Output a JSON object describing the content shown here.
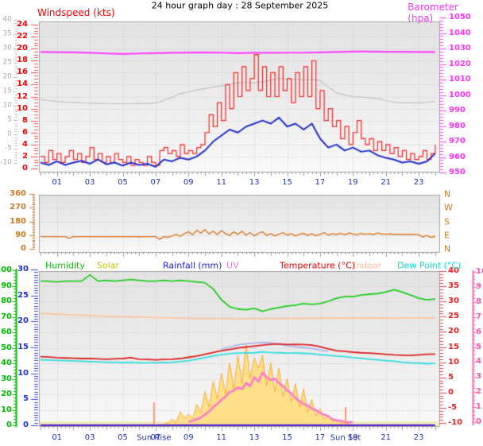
{
  "header": {
    "title": "24 hour graph day : 28 September 2025"
  },
  "hour_tick_labels": [
    "01",
    "03",
    "05",
    "07",
    "09",
    "11",
    "13",
    "15",
    "17",
    "19",
    "21",
    "23"
  ],
  "hour_tick_hours": [
    1,
    3,
    5,
    7,
    9,
    11,
    13,
    15,
    17,
    19,
    21,
    23
  ],
  "chart_data": [
    {
      "id": "wind-and-barometer",
      "type": "line",
      "x_axis": {
        "range_hours": [
          0,
          24
        ]
      },
      "axes": {
        "outer": {
          "label": "",
          "ticks": [
            40,
            35,
            30,
            25,
            20,
            15,
            10,
            5,
            0,
            -5,
            -10
          ],
          "range": [
            -10,
            40
          ],
          "color": "#a8a8a8"
        },
        "windspeed": {
          "label": "Windspeed (kts)",
          "ticks": [
            24,
            22,
            20,
            18,
            16,
            14,
            12,
            10,
            8,
            6,
            4,
            2,
            0
          ],
          "range": [
            0,
            24
          ],
          "color": "#ff0000"
        },
        "barometer": {
          "label": "Barometer (hpa)",
          "ticks": [
            1050,
            1040,
            1030,
            1020,
            1010,
            1000,
            990,
            980,
            970,
            960,
            950
          ],
          "range": [
            950,
            1050
          ],
          "color": "#ff33ff"
        }
      },
      "series": [
        {
          "name": "gray-trend",
          "axis": "outer",
          "color": "#c2c2c2",
          "style": "line",
          "x_start": 0,
          "x_step": 0.5,
          "y": [
            12.2,
            11.8,
            11.5,
            11.3,
            11.2,
            11.0,
            10.9,
            10.8,
            10.8,
            10.7,
            10.7,
            10.8,
            10.8,
            10.8,
            11.0,
            11.8,
            13.0,
            14.2,
            14.8,
            15.5,
            16.0,
            16.5,
            17.0,
            17.5,
            18.0,
            18.2,
            18.0,
            18.3,
            19.0,
            19.5,
            19.2,
            19.3,
            19.0,
            19.2,
            18.8,
            16.5,
            14.5,
            13.8,
            13.2,
            13.0,
            12.8,
            12.5,
            11.8,
            11.2,
            11.0,
            11.0,
            11.0,
            11.2,
            11.5
          ]
        },
        {
          "name": "wind-gust",
          "axis": "windspeed",
          "color": "#ff2222",
          "style": "step",
          "x_start": 0,
          "x_step": 0.25,
          "y": [
            2.0,
            1.0,
            3.0,
            1.5,
            2.5,
            1.0,
            2.0,
            3.0,
            1.5,
            2.5,
            1.0,
            2.0,
            3.5,
            1.5,
            2.5,
            1.0,
            2.0,
            1.0,
            2.5,
            1.5,
            1.0,
            2.0,
            0.5,
            1.5,
            1.0,
            0.5,
            2.0,
            1.0,
            0.5,
            3.0,
            3.5,
            2.5,
            3.0,
            2.0,
            4.0,
            2.5,
            3.0,
            2.5,
            3.5,
            4.0,
            6.0,
            9.0,
            7.0,
            11.0,
            8.0,
            14.0,
            10.0,
            16.0,
            12.0,
            17.0,
            13.0,
            15.0,
            19.0,
            13.0,
            17.0,
            12.0,
            16.0,
            12.0,
            17.0,
            13.0,
            15.0,
            11.0,
            16.0,
            12.0,
            17.0,
            12.0,
            18.0,
            10.0,
            13.0,
            8.0,
            10.0,
            7.0,
            8.0,
            5.0,
            7.0,
            4.0,
            6.0,
            8.0,
            5.0,
            4.0,
            5.0,
            3.0,
            4.5,
            3.0,
            4.0,
            2.5,
            3.5,
            2.0,
            3.0,
            1.5,
            2.5,
            1.5,
            2.0,
            3.0,
            1.5,
            2.5,
            4.0
          ]
        },
        {
          "name": "wind-average",
          "axis": "windspeed",
          "color": "#2233cc",
          "style": "line",
          "x_start": 0,
          "x_step": 0.5,
          "y": [
            1.0,
            0.6,
            1.2,
            0.6,
            1.0,
            1.3,
            0.8,
            1.5,
            0.7,
            1.0,
            0.5,
            1.0,
            0.6,
            0.8,
            0.3,
            1.5,
            1.2,
            1.8,
            1.5,
            2.0,
            3.0,
            4.5,
            5.5,
            6.5,
            6.0,
            7.0,
            7.5,
            8.0,
            7.5,
            8.5,
            7.0,
            7.5,
            6.5,
            7.5,
            5.0,
            3.5,
            4.0,
            3.0,
            3.5,
            2.8,
            3.0,
            2.2,
            1.8,
            1.5,
            1.0,
            1.2,
            0.8,
            1.2,
            2.5
          ]
        },
        {
          "name": "barometer",
          "axis": "barometer",
          "color": "#ff44ff",
          "style": "line",
          "x_start": 0,
          "x_step": 1,
          "y": [
            1027.8,
            1027.6,
            1027.5,
            1027.2,
            1026.8,
            1026.5,
            1026.8,
            1027.0,
            1027.2,
            1027.4,
            1027.5,
            1027.3,
            1027.0,
            1027.2,
            1027.2,
            1027.3,
            1027.3,
            1027.5,
            1027.8,
            1028.0,
            1028.0,
            1027.9,
            1027.9,
            1027.8,
            1027.8
          ]
        }
      ]
    },
    {
      "id": "wind-direction",
      "type": "line",
      "axes": {
        "direction": {
          "label": "",
          "ticks": [
            360,
            270,
            180,
            90,
            0
          ],
          "range": [
            0,
            360
          ],
          "color": "#cc7a22"
        },
        "compass": {
          "ticks": [
            "N",
            "W",
            "S",
            "E",
            "N"
          ],
          "tick_values": [
            360,
            270,
            180,
            90,
            0
          ],
          "color": "#cc7a22"
        }
      },
      "series": [
        {
          "name": "wind-direction",
          "axis": "direction",
          "color": "#dd7722",
          "style": "line",
          "x_start": 0,
          "x_step": 0.25,
          "y": [
            80,
            80,
            80,
            80,
            80,
            80,
            80,
            70,
            80,
            80,
            80,
            80,
            80,
            80,
            80,
            80,
            80,
            80,
            80,
            80,
            80,
            80,
            80,
            80,
            78,
            80,
            80,
            80,
            80,
            62,
            80,
            76,
            85,
            95,
            82,
            100,
            112,
            92,
            122,
            103,
            126,
            98,
            116,
            94,
            120,
            100,
            88,
            112,
            95,
            116,
            90,
            106,
            85,
            102,
            112,
            88,
            100,
            84,
            96,
            106,
            90,
            100,
            84,
            96,
            102,
            88,
            100,
            86,
            96,
            106,
            90,
            100,
            94,
            102,
            92,
            104,
            98,
            92,
            102,
            96,
            100,
            94,
            104,
            98,
            96,
            98,
            95,
            95,
            95,
            95,
            95,
            95,
            92,
            78,
            88,
            74,
            82
          ]
        }
      ]
    },
    {
      "id": "humidity-solar-rain-uv-temperature",
      "type": "line",
      "legend_items": [
        {
          "label": "Humidity",
          "color": "#00cc00"
        },
        {
          "label": "Solar",
          "color": "#c8c800"
        },
        {
          "label": "Rainfall (mm)",
          "color": "#2222dd"
        },
        {
          "label": "UV",
          "color": "#ff77dd"
        },
        {
          "label": "Temperature (°C)",
          "color": "#ee0000"
        },
        {
          "label": "Indoor",
          "color": "#ffbb99"
        },
        {
          "label": "Dew Point (°C)",
          "color": "#00dddd"
        }
      ],
      "axes": {
        "humidity": {
          "label": "Humidity",
          "ticks": [
            100,
            90,
            80,
            70,
            60,
            50,
            40,
            30,
            20,
            10,
            0
          ],
          "range": [
            0,
            100
          ],
          "color": "#00bb00"
        },
        "rainfall": {
          "label": "Rainfall (mm)",
          "ticks": [
            30,
            25,
            20,
            15,
            10,
            5,
            0
          ],
          "range": [
            0,
            30
          ],
          "color": "#2233cc"
        },
        "temperature": {
          "label": "Temperature (°C)",
          "ticks": [
            40,
            35,
            30,
            25,
            20,
            15,
            10,
            5,
            0,
            -5,
            -10
          ],
          "range": [
            -10,
            40
          ],
          "color": "#ee2222"
        },
        "uv": {
          "label": "UV",
          "ticks": [
            10,
            9,
            8,
            7,
            6,
            5,
            4,
            3,
            2,
            1,
            0
          ],
          "range": [
            0,
            10
          ],
          "color": "#ff55aa"
        }
      },
      "annotations": {
        "sun_rise": {
          "label": "Sun Rise",
          "hour": 6.9
        },
        "sun_set": {
          "label": "Sun Set",
          "hour": 18.55
        }
      },
      "series": [
        {
          "name": "solar",
          "axis": "rainfall",
          "color": "#ffaa33",
          "fill": "#ffe08a",
          "style": "area",
          "x_start": 7.5,
          "x_step": 0.25,
          "y": [
            0.2,
            0.5,
            1.2,
            0.6,
            2.6,
            1.4,
            2.2,
            1.2,
            4.0,
            2.4,
            6.5,
            3.5,
            8.5,
            5.0,
            10.0,
            6.0,
            12.0,
            7.0,
            13.5,
            8.0,
            15.5,
            9.0,
            13.0,
            11.0,
            13.5,
            7.5,
            12.0,
            6.5,
            11.0,
            5.5,
            9.0,
            4.5,
            8.0,
            3.5,
            7.0,
            2.5,
            5.0,
            1.8,
            3.2,
            1.2,
            2.0,
            0.8,
            1.2,
            0.4,
            0.6,
            0.2,
            0.0
          ]
        },
        {
          "name": "rainfall",
          "axis": "rainfall",
          "color": "#5522cc",
          "style": "line",
          "x": [
            0,
            24
          ],
          "y": [
            0,
            0
          ]
        },
        {
          "name": "indoor",
          "axis": "temperature",
          "color": "#ffc8a0",
          "style": "line",
          "x_start": 0,
          "x_step": 1,
          "y": [
            26.0,
            25.8,
            25.6,
            25.4,
            25.2,
            25.0,
            24.9,
            24.7,
            24.6,
            24.4,
            24.3,
            24.3,
            24.2,
            24.3,
            24.3,
            24.4,
            24.4,
            24.5,
            24.5,
            24.5,
            24.5,
            24.5,
            24.6,
            24.6,
            24.6
          ]
        },
        {
          "name": "temp-secondary-lavender",
          "axis": "temperature",
          "color": "#b0b4ee",
          "style": "line",
          "x": [
            11,
            11.5,
            12,
            12.5,
            13,
            13.5,
            14,
            14.5,
            15,
            15.5,
            16,
            16.5,
            17,
            17.5
          ],
          "y": [
            14.3,
            15.0,
            15.7,
            16.1,
            16.3,
            16.5,
            16.4,
            15.9,
            15.4,
            15.1,
            14.8,
            14.5,
            14.0,
            13.6
          ]
        },
        {
          "name": "humidity",
          "axis": "humidity",
          "color": "#22cc22",
          "style": "line",
          "x_start": 0,
          "x_step": 0.5,
          "y": [
            93,
            93,
            92.5,
            93,
            93,
            93,
            97,
            93,
            93.5,
            93,
            93.5,
            94,
            93.5,
            93,
            93,
            93.5,
            93,
            93.5,
            93,
            92.5,
            92,
            88,
            81,
            76.5,
            75,
            74.5,
            75.5,
            73.5,
            75,
            76,
            77,
            77.5,
            78.5,
            78,
            78.5,
            80,
            82,
            83,
            83,
            84,
            84.5,
            85,
            86,
            87.5,
            86,
            84,
            82,
            81,
            81.5
          ]
        },
        {
          "name": "dew-point",
          "axis": "temperature",
          "color": "#33dddd",
          "style": "line",
          "x_start": 0,
          "x_step": 0.5,
          "y": [
            10.8,
            10.7,
            10.6,
            10.5,
            10.4,
            10.3,
            10.2,
            10.1,
            10.0,
            10.0,
            9.9,
            10.0,
            9.8,
            9.8,
            9.8,
            9.9,
            10.0,
            10.2,
            10.5,
            11.0,
            11.5,
            12.0,
            12.5,
            12.8,
            13.0,
            13.0,
            13.1,
            13.4,
            13.2,
            13.1,
            13.0,
            13.0,
            12.9,
            12.8,
            12.5,
            12.3,
            12.0,
            11.8,
            11.5,
            11.3,
            11.0,
            10.8,
            10.5,
            10.3,
            10.0,
            9.8,
            9.7,
            9.5,
            9.6
          ]
        },
        {
          "name": "temperature",
          "axis": "temperature",
          "color": "#dd2222",
          "style": "line",
          "x_start": 0,
          "x_step": 0.5,
          "y": [
            11.8,
            11.7,
            11.5,
            11.4,
            11.3,
            11.2,
            11.2,
            11.1,
            11.0,
            11.1,
            11.2,
            11.5,
            11.0,
            10.9,
            10.8,
            10.9,
            11.0,
            11.2,
            11.6,
            12.0,
            12.6,
            13.2,
            13.8,
            14.2,
            14.7,
            15.0,
            15.3,
            15.6,
            15.9,
            16.0,
            15.8,
            15.9,
            15.8,
            15.6,
            15.1,
            14.4,
            13.8,
            13.6,
            13.3,
            13.1,
            13.0,
            12.8,
            12.6,
            12.4,
            12.3,
            12.2,
            12.4,
            12.6,
            12.7
          ]
        },
        {
          "name": "uv",
          "axis": "uv",
          "color": "#ff77cc",
          "style": "line",
          "x_start": 9,
          "x_step": 0.25,
          "y": [
            0.0,
            0.1,
            0.2,
            0.3,
            0.5,
            0.7,
            1.0,
            1.2,
            1.5,
            1.7,
            2.0,
            2.1,
            2.3,
            2.2,
            2.6,
            2.4,
            3.0,
            2.7,
            3.3,
            3.0,
            2.8,
            2.9,
            2.6,
            2.4,
            2.1,
            1.9,
            1.6,
            1.4,
            1.2,
            1.1,
            0.9,
            0.8,
            0.6,
            0.5,
            0.4,
            0.2,
            0.1,
            0.1,
            0.0,
            0.0,
            0.0
          ]
        }
      ]
    }
  ]
}
